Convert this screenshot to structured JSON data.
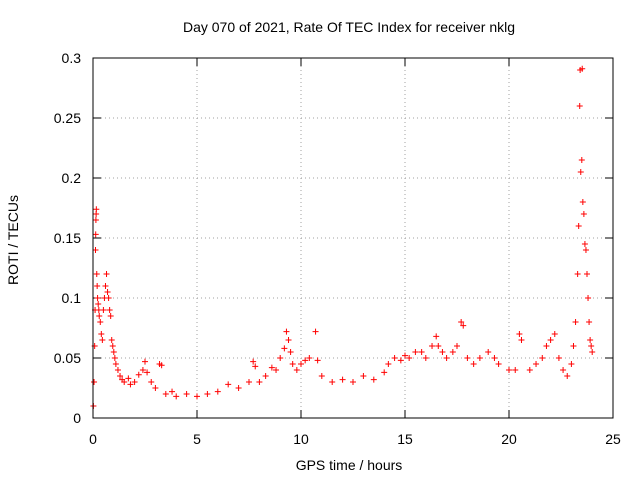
{
  "chart_data": {
    "type": "scatter",
    "title": "Day 070 of 2021, Rate Of TEC Index for receiver nklg",
    "xlabel": "GPS time / hours",
    "ylabel": "ROTI / TECUs",
    "xlim": [
      0,
      25
    ],
    "ylim": [
      0,
      0.3
    ],
    "xticks": [
      0,
      5,
      10,
      15,
      20,
      25
    ],
    "xtick_labels": [
      "0",
      "5",
      "10",
      "15",
      "20",
      "25"
    ],
    "yticks": [
      0,
      0.05,
      0.1,
      0.15,
      0.2,
      0.25,
      0.3
    ],
    "ytick_labels": [
      "0",
      "0.05",
      "0.1",
      "0.15",
      "0.2",
      "0.25",
      "0.3"
    ],
    "grid": true,
    "marker": "+",
    "color": "#ff0000",
    "series": [
      {
        "points": [
          [
            0.02,
            0.01
          ],
          [
            0.05,
            0.03
          ],
          [
            0.08,
            0.06
          ],
          [
            0.1,
            0.09
          ],
          [
            0.12,
            0.14
          ],
          [
            0.13,
            0.153
          ],
          [
            0.14,
            0.165
          ],
          [
            0.15,
            0.17
          ],
          [
            0.16,
            0.174
          ],
          [
            0.18,
            0.12
          ],
          [
            0.2,
            0.11
          ],
          [
            0.22,
            0.1
          ],
          [
            0.25,
            0.095
          ],
          [
            0.28,
            0.09
          ],
          [
            0.3,
            0.085
          ],
          [
            0.35,
            0.08
          ],
          [
            0.4,
            0.07
          ],
          [
            0.45,
            0.065
          ],
          [
            0.5,
            0.09
          ],
          [
            0.55,
            0.1
          ],
          [
            0.6,
            0.11
          ],
          [
            0.65,
            0.12
          ],
          [
            0.7,
            0.105
          ],
          [
            0.75,
            0.1
          ],
          [
            0.8,
            0.09
          ],
          [
            0.85,
            0.085
          ],
          [
            0.9,
            0.065
          ],
          [
            0.95,
            0.06
          ],
          [
            1.0,
            0.055
          ],
          [
            1.05,
            0.05
          ],
          [
            1.1,
            0.045
          ],
          [
            1.2,
            0.04
          ],
          [
            1.3,
            0.035
          ],
          [
            1.4,
            0.032
          ],
          [
            1.5,
            0.03
          ],
          [
            1.7,
            0.033
          ],
          [
            1.8,
            0.028
          ],
          [
            2.0,
            0.03
          ],
          [
            2.2,
            0.036
          ],
          [
            2.4,
            0.04
          ],
          [
            2.5,
            0.047
          ],
          [
            2.6,
            0.038
          ],
          [
            2.8,
            0.03
          ],
          [
            3.0,
            0.025
          ],
          [
            3.2,
            0.045
          ],
          [
            3.3,
            0.044
          ],
          [
            3.5,
            0.02
          ],
          [
            3.8,
            0.022
          ],
          [
            4.0,
            0.018
          ],
          [
            4.5,
            0.02
          ],
          [
            5.0,
            0.018
          ],
          [
            5.5,
            0.02
          ],
          [
            6.0,
            0.022
          ],
          [
            6.5,
            0.028
          ],
          [
            7.0,
            0.025
          ],
          [
            7.5,
            0.03
          ],
          [
            7.7,
            0.047
          ],
          [
            7.8,
            0.043
          ],
          [
            8.0,
            0.03
          ],
          [
            8.3,
            0.035
          ],
          [
            8.6,
            0.042
          ],
          [
            8.8,
            0.04
          ],
          [
            9.0,
            0.05
          ],
          [
            9.2,
            0.058
          ],
          [
            9.3,
            0.072
          ],
          [
            9.4,
            0.065
          ],
          [
            9.5,
            0.055
          ],
          [
            9.6,
            0.045
          ],
          [
            9.8,
            0.04
          ],
          [
            10.0,
            0.045
          ],
          [
            10.2,
            0.048
          ],
          [
            10.4,
            0.05
          ],
          [
            10.7,
            0.072
          ],
          [
            10.8,
            0.048
          ],
          [
            11.0,
            0.035
          ],
          [
            11.5,
            0.03
          ],
          [
            12.0,
            0.032
          ],
          [
            12.5,
            0.03
          ],
          [
            13.0,
            0.035
          ],
          [
            13.5,
            0.032
          ],
          [
            14.0,
            0.038
          ],
          [
            14.2,
            0.045
          ],
          [
            14.5,
            0.05
          ],
          [
            14.8,
            0.048
          ],
          [
            15.0,
            0.052
          ],
          [
            15.2,
            0.05
          ],
          [
            15.5,
            0.055
          ],
          [
            15.8,
            0.055
          ],
          [
            16.0,
            0.05
          ],
          [
            16.3,
            0.06
          ],
          [
            16.5,
            0.068
          ],
          [
            16.6,
            0.06
          ],
          [
            16.8,
            0.055
          ],
          [
            17.0,
            0.05
          ],
          [
            17.3,
            0.055
          ],
          [
            17.5,
            0.06
          ],
          [
            17.7,
            0.08
          ],
          [
            17.8,
            0.077
          ],
          [
            18.0,
            0.05
          ],
          [
            18.3,
            0.045
          ],
          [
            18.6,
            0.05
          ],
          [
            19.0,
            0.055
          ],
          [
            19.3,
            0.05
          ],
          [
            19.5,
            0.045
          ],
          [
            20.0,
            0.04
          ],
          [
            20.3,
            0.04
          ],
          [
            20.5,
            0.07
          ],
          [
            20.6,
            0.065
          ],
          [
            21.0,
            0.04
          ],
          [
            21.3,
            0.045
          ],
          [
            21.6,
            0.05
          ],
          [
            21.8,
            0.06
          ],
          [
            22.0,
            0.065
          ],
          [
            22.2,
            0.07
          ],
          [
            22.4,
            0.05
          ],
          [
            22.6,
            0.04
          ],
          [
            22.8,
            0.035
          ],
          [
            23.0,
            0.045
          ],
          [
            23.1,
            0.06
          ],
          [
            23.2,
            0.08
          ],
          [
            23.3,
            0.12
          ],
          [
            23.35,
            0.16
          ],
          [
            23.4,
            0.26
          ],
          [
            23.42,
            0.29
          ],
          [
            23.45,
            0.205
          ],
          [
            23.5,
            0.215
          ],
          [
            23.52,
            0.291
          ],
          [
            23.55,
            0.18
          ],
          [
            23.6,
            0.17
          ],
          [
            23.65,
            0.145
          ],
          [
            23.7,
            0.14
          ],
          [
            23.75,
            0.12
          ],
          [
            23.8,
            0.1
          ],
          [
            23.85,
            0.08
          ],
          [
            23.9,
            0.065
          ],
          [
            23.95,
            0.06
          ],
          [
            24.0,
            0.055
          ]
        ]
      }
    ]
  }
}
